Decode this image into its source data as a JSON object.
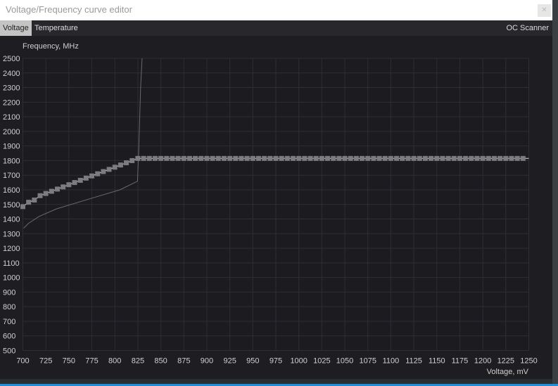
{
  "window": {
    "title": "Voltage/Frequency curve editor",
    "close_icon": "close-icon"
  },
  "tabs": [
    {
      "label": "Voltage",
      "active": true
    },
    {
      "label": "Temperature",
      "active": false
    }
  ],
  "oc_scanner_label": "OC Scanner",
  "colors": {
    "background": "#1c1b20",
    "grid": "#2e2e33",
    "curve": "#7c7c80",
    "curve_line": "#e0e0e0",
    "secondary_line": "#6a6a6e"
  },
  "chart_data": {
    "type": "line",
    "xlabel": "Voltage, mV",
    "ylabel": "Frequency, MHz",
    "xlim": [
      700,
      1250
    ],
    "ylim": [
      500,
      2500
    ],
    "x_ticks": [
      "700",
      "725",
      "750",
      "775",
      "800",
      "825",
      "850",
      "875",
      "900",
      "925",
      "950",
      "975",
      "1000",
      "1025",
      "1050",
      "1075",
      "1100",
      "1125",
      "1150",
      "1175",
      "1200",
      "1225",
      "1250"
    ],
    "y_ticks": [
      "500",
      "600",
      "700",
      "800",
      "900",
      "1000",
      "1100",
      "1200",
      "1300",
      "1400",
      "1500",
      "1600",
      "1700",
      "1800",
      "1900",
      "2000",
      "2100",
      "2200",
      "2300",
      "2400",
      "2500"
    ],
    "grid": true,
    "series": [
      {
        "style": "markers",
        "x": [
          700,
          706.25,
          712.5,
          718.75,
          725,
          731.25,
          737.5,
          743.75,
          750,
          756.25,
          762.5,
          768.75,
          775,
          781.25,
          787.5,
          793.75,
          800,
          806.25,
          812.5,
          818.75,
          825,
          831.25,
          837.5,
          843.75,
          850,
          856.25,
          862.5,
          868.75,
          875,
          881.25,
          887.5,
          893.75,
          900,
          906.25,
          912.5,
          918.75,
          925,
          931.25,
          937.5,
          943.75,
          950,
          956.25,
          962.5,
          968.75,
          975,
          981.25,
          987.5,
          993.75,
          1000,
          1006.25,
          1012.5,
          1018.75,
          1025,
          1031.25,
          1037.5,
          1043.75,
          1050,
          1056.25,
          1062.5,
          1068.75,
          1075,
          1081.25,
          1087.5,
          1093.75,
          1100,
          1106.25,
          1112.5,
          1118.75,
          1125,
          1131.25,
          1137.5,
          1143.75,
          1150,
          1156.25,
          1162.5,
          1168.75,
          1175,
          1181.25,
          1187.5,
          1193.75,
          1200,
          1206.25,
          1212.5,
          1218.75,
          1225,
          1231.25,
          1237.5,
          1243.75
        ],
        "y": [
          1485,
          1515,
          1530,
          1560,
          1575,
          1590,
          1605,
          1620,
          1635,
          1650,
          1665,
          1680,
          1695,
          1710,
          1725,
          1740,
          1755,
          1770,
          1785,
          1800,
          1815,
          1815,
          1815,
          1815,
          1815,
          1815,
          1815,
          1815,
          1815,
          1815,
          1815,
          1815,
          1815,
          1815,
          1815,
          1815,
          1815,
          1815,
          1815,
          1815,
          1815,
          1815,
          1815,
          1815,
          1815,
          1815,
          1815,
          1815,
          1815,
          1815,
          1815,
          1815,
          1815,
          1815,
          1815,
          1815,
          1815,
          1815,
          1815,
          1815,
          1815,
          1815,
          1815,
          1815,
          1815,
          1815,
          1815,
          1815,
          1815,
          1815,
          1815,
          1815,
          1815,
          1815,
          1815,
          1815,
          1815,
          1815,
          1815,
          1815,
          1815,
          1815,
          1815,
          1815,
          1815,
          1815,
          1815,
          1815
        ]
      },
      {
        "style": "thin-line",
        "x": [
          700.8,
          706,
          717.6,
          736.7,
          775,
          805.5,
          824.6,
          826,
          828,
          829.6
        ],
        "y": [
          1337,
          1370,
          1418,
          1470,
          1543,
          1600,
          1659,
          1880,
          2300,
          2500
        ]
      }
    ]
  }
}
